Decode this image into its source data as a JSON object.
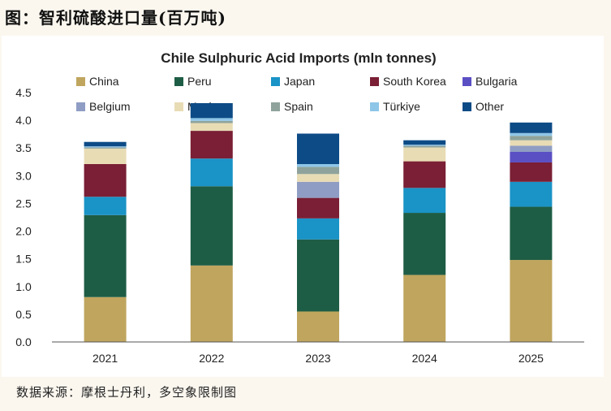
{
  "page": {
    "heading": "图：智利硫酸进口量(百万吨)",
    "source": "数据来源：摩根士丹利，多空象限制图"
  },
  "chart_data": {
    "type": "bar",
    "stacked": true,
    "title": "Chile Sulphuric Acid Imports (mln tonnes)",
    "xlabel": "",
    "ylabel": "",
    "ylim": [
      0,
      4.5
    ],
    "yticks": [
      "0.0",
      "0.5",
      "1.0",
      "1.5",
      "2.0",
      "2.5",
      "3.0",
      "3.5",
      "4.0",
      "4.5"
    ],
    "grid": false,
    "legend_position": "top",
    "categories": [
      "2021",
      "2022",
      "2023",
      "2024",
      "2025"
    ],
    "series": [
      {
        "name": "China",
        "color": "#bfa55e",
        "values": [
          0.81,
          1.38,
          0.55,
          1.21,
          1.48
        ]
      },
      {
        "name": "Peru",
        "color": "#1e5d45",
        "values": [
          1.48,
          1.43,
          1.3,
          1.12,
          0.96
        ]
      },
      {
        "name": "Japan",
        "color": "#1a93c6",
        "values": [
          0.33,
          0.5,
          0.38,
          0.45,
          0.45
        ]
      },
      {
        "name": "South Korea",
        "color": "#7a1f35",
        "values": [
          0.59,
          0.5,
          0.37,
          0.48,
          0.35
        ]
      },
      {
        "name": "Bulgaria",
        "color": "#5b4fc4",
        "values": [
          0.0,
          0.0,
          0.0,
          0.0,
          0.19
        ]
      },
      {
        "name": "Belgium",
        "color": "#8f9dc4",
        "values": [
          0.0,
          0.0,
          0.29,
          0.0,
          0.11
        ]
      },
      {
        "name": "Mexico",
        "color": "#e8dcb5",
        "values": [
          0.28,
          0.14,
          0.14,
          0.25,
          0.1
        ]
      },
      {
        "name": "Spain",
        "color": "#8fa39c",
        "values": [
          0.02,
          0.04,
          0.13,
          0.03,
          0.08
        ]
      },
      {
        "name": "Türkiye",
        "color": "#8ec6e8",
        "values": [
          0.02,
          0.05,
          0.05,
          0.02,
          0.05
        ]
      },
      {
        "name": "Other",
        "color": "#0d4b86",
        "values": [
          0.08,
          0.27,
          0.55,
          0.08,
          0.19
        ]
      }
    ]
  }
}
